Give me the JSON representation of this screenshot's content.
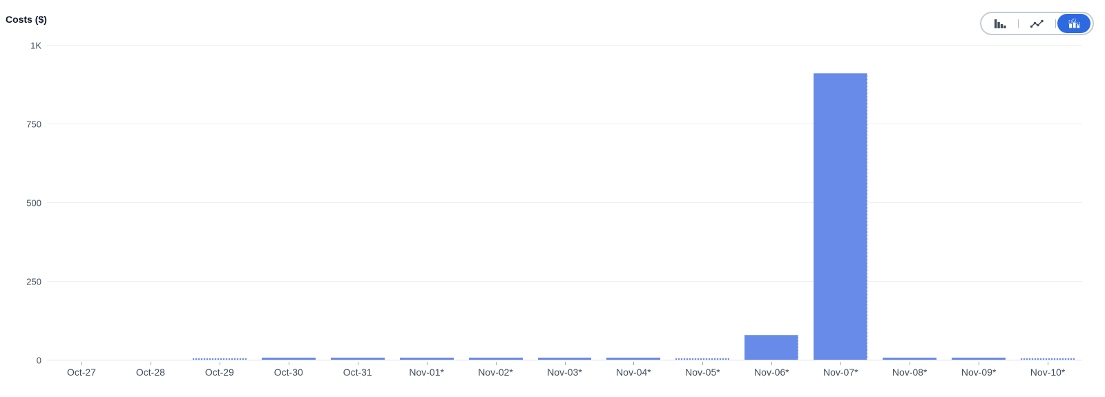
{
  "chart": {
    "title": "Costs ($)"
  },
  "toolbar": {
    "options": [
      {
        "icon": "bar-chart-icon",
        "selected": false
      },
      {
        "icon": "line-chart-icon",
        "selected": false
      },
      {
        "icon": "stacked-bar-chart-icon",
        "selected": true
      }
    ]
  },
  "colors": {
    "bar": "#688AE8",
    "toggle_selected": "#2D69E0",
    "icon_dark": "#414D5C",
    "gridline": "#EDEEF1",
    "axis_text": "#414D5C"
  },
  "chart_data": {
    "type": "bar",
    "title": "Costs ($)",
    "xlabel": "",
    "ylabel": "Costs ($)",
    "ylim": [
      0,
      1000
    ],
    "grid": true,
    "legend": false,
    "categories": [
      "Oct-27",
      "Oct-28",
      "Oct-29",
      "Oct-30",
      "Oct-31",
      "Nov-01*",
      "Nov-02*",
      "Nov-03*",
      "Nov-04*",
      "Nov-05*",
      "Nov-06*",
      "Nov-07*",
      "Nov-08*",
      "Nov-09*",
      "Nov-10*"
    ],
    "values": [
      0,
      0,
      2,
      7,
      3,
      4,
      6,
      4,
      4,
      1.5,
      80,
      910,
      4,
      5,
      2
    ],
    "yticks": [
      {
        "label": "0",
        "value": 0
      },
      {
        "label": "250",
        "value": 250
      },
      {
        "label": "500",
        "value": 500
      },
      {
        "label": "750",
        "value": 750
      },
      {
        "label": "1K",
        "value": 1000
      }
    ]
  }
}
